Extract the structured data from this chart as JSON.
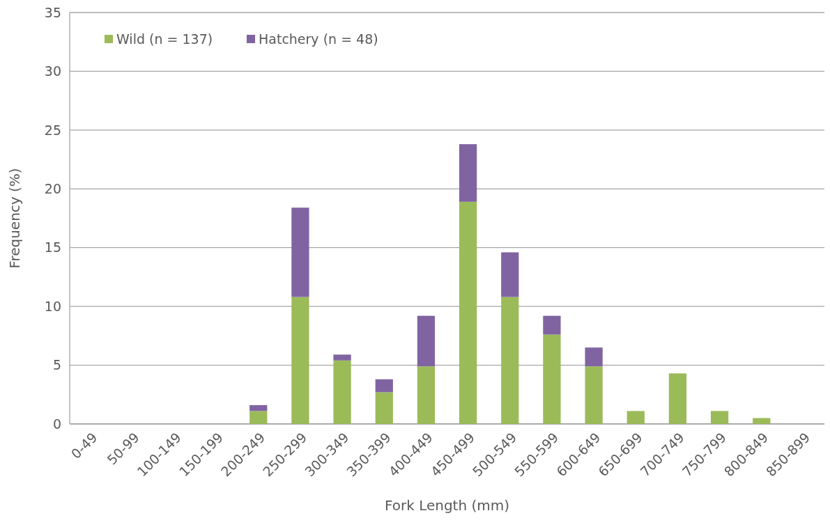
{
  "chart_data": {
    "type": "bar",
    "stacked": true,
    "xlabel": "Fork Length (mm)",
    "ylabel": "Frequency (%)",
    "categories": [
      "0-49",
      "50-99",
      "100-149",
      "150-199",
      "200-249",
      "250-299",
      "300-349",
      "350-399",
      "400-449",
      "450-499",
      "500-549",
      "550-599",
      "600-649",
      "650-699",
      "700-749",
      "750-799",
      "800-849",
      "850-899"
    ],
    "series": [
      {
        "name": "Wild (n = 137)",
        "color": "#9bbb59",
        "values": [
          0,
          0,
          0,
          0,
          1.1,
          10.8,
          5.4,
          2.7,
          4.9,
          18.9,
          10.8,
          7.6,
          4.9,
          1.1,
          4.3,
          1.1,
          0.5,
          0
        ]
      },
      {
        "name": "Hatchery (n = 48)",
        "color": "#8064a2",
        "values": [
          0,
          0,
          0,
          0,
          0.5,
          7.6,
          0.5,
          1.1,
          4.3,
          4.9,
          3.8,
          1.6,
          1.6,
          0,
          0,
          0,
          0,
          0
        ]
      }
    ],
    "ylim": [
      0,
      35
    ],
    "yticks": [
      0,
      5,
      10,
      15,
      20,
      25,
      30,
      35
    ],
    "grid": "y",
    "legend": "top left"
  }
}
